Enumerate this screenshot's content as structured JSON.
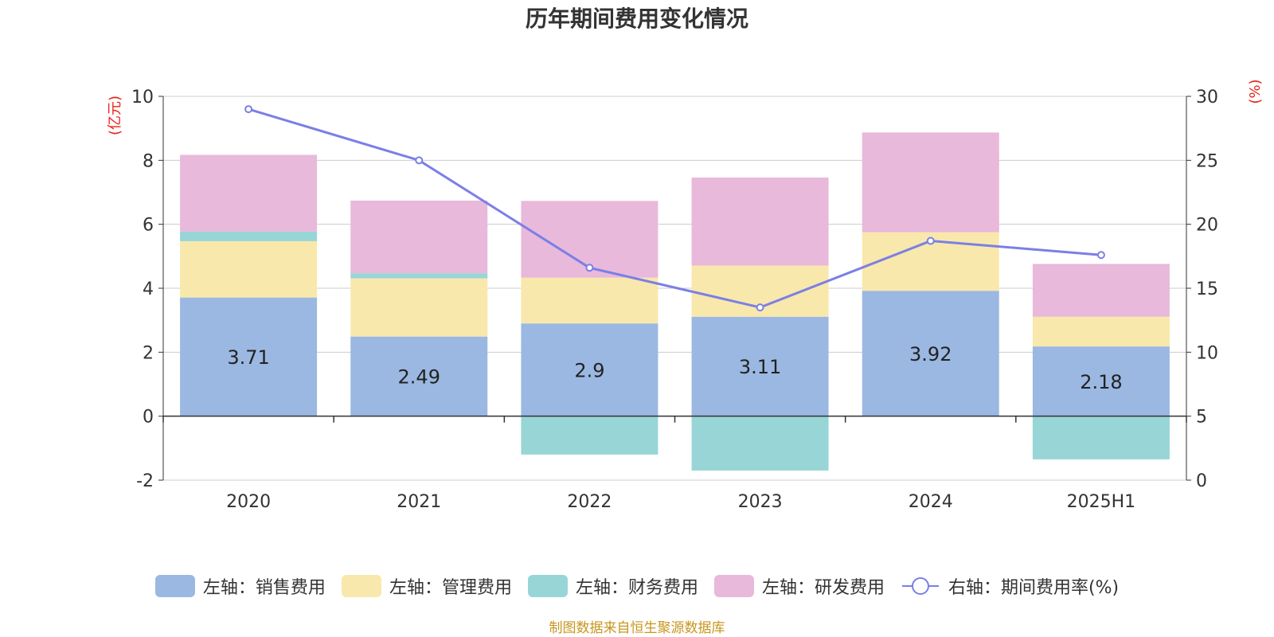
{
  "chart_data": {
    "type": "bar",
    "stacked": true,
    "title": "历年期间费用变化情况",
    "categories": [
      "2020",
      "2021",
      "2022",
      "2023",
      "2024",
      "2025H1"
    ],
    "left_axis": {
      "label": "(亿元)",
      "ylim": [
        -2,
        10
      ],
      "ticks": [
        -2,
        0,
        2,
        4,
        6,
        8,
        10
      ]
    },
    "right_axis": {
      "label": "(%)",
      "ylim": [
        0,
        30
      ],
      "ticks": [
        0,
        5,
        10,
        15,
        20,
        25,
        30
      ]
    },
    "series": [
      {
        "name": "左轴：销售费用",
        "axis": "left",
        "type": "bar",
        "color": "#9bb8e2",
        "values": [
          3.71,
          2.49,
          2.9,
          3.11,
          3.92,
          2.18
        ],
        "show_labels": true
      },
      {
        "name": "左轴：管理费用",
        "axis": "left",
        "type": "bar",
        "color": "#f8e8ab",
        "values": [
          1.76,
          1.82,
          1.43,
          1.6,
          1.83,
          0.93
        ]
      },
      {
        "name": "左轴：财务费用",
        "axis": "left",
        "type": "bar",
        "color": "#98d5d6",
        "values": [
          0.3,
          0.16,
          -1.2,
          -1.7,
          0.0,
          -1.35
        ]
      },
      {
        "name": "左轴：研发费用",
        "axis": "left",
        "type": "bar",
        "color": "#e8b9da",
        "values": [
          2.4,
          2.27,
          2.4,
          2.75,
          3.12,
          1.65
        ]
      },
      {
        "name": "右轴：期间费用率(%)",
        "axis": "right",
        "type": "line",
        "color": "#7b7fe6",
        "values": [
          29.0,
          25.0,
          16.6,
          13.5,
          18.7,
          17.6
        ]
      }
    ],
    "grid": true,
    "legend_position": "bottom"
  },
  "source_note": "制图数据来自恒生聚源数据库"
}
